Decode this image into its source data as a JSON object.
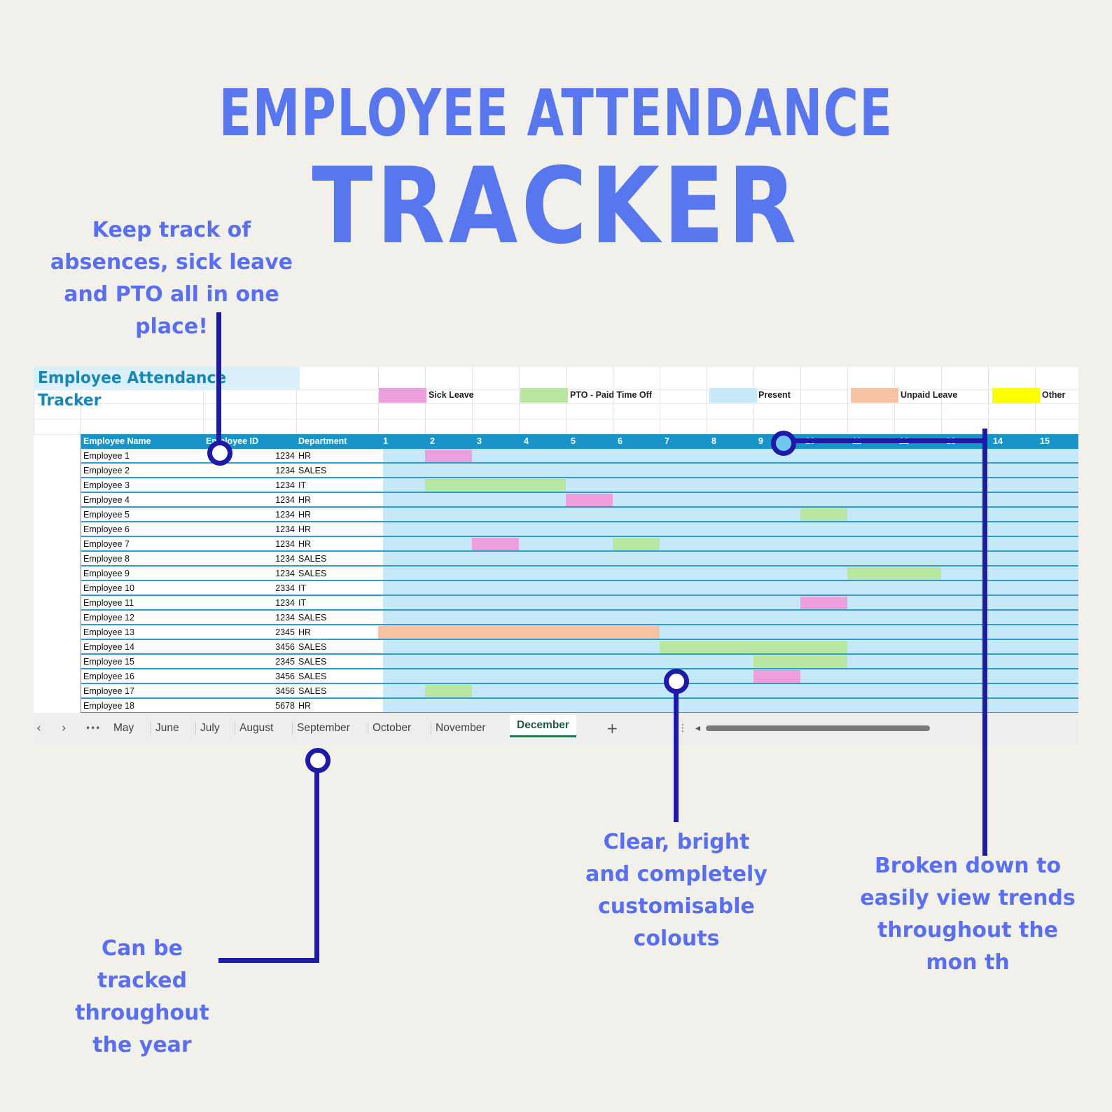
{
  "hero": {
    "title_line1": "EMPLOYEE ATTENDANCE",
    "title_line2": "TRACKER"
  },
  "callouts": {
    "top_left": [
      "Keep track of",
      "absences, sick leave",
      "and PTO all in one",
      "place!"
    ],
    "bottom_left": [
      "Can be",
      "tracked",
      "throughout",
      "the year"
    ],
    "bottom_middle": [
      "Clear, bright",
      "and completely",
      "customisable",
      "colouts"
    ],
    "bottom_right": [
      "Broken down to",
      "easily view trends",
      "throughout the",
      "mon th"
    ]
  },
  "colors": {
    "sick_leave": "#ec9fdc",
    "pto": "#b9e6a0",
    "present": "#c5e9f8",
    "unpaid_leave": "#f7c3a2",
    "other": "#ffff00",
    "header": "#1994c9",
    "accent_text": "#5a6ff0",
    "pointer": "#1e1aa7"
  },
  "sheet": {
    "title": "Employee Attendance Tracker",
    "legend": [
      {
        "key": "sick",
        "label": "Sick Leave",
        "color": "#ec9fdc"
      },
      {
        "key": "pto",
        "label": "PTO - Paid Time Off",
        "color": "#b9e6a0"
      },
      {
        "key": "present",
        "label": "Present",
        "color": "#c5e9f8"
      },
      {
        "key": "unpaid",
        "label": "Unpaid Leave",
        "color": "#f7c3a2"
      },
      {
        "key": "other",
        "label": "Other",
        "color": "#ffff00"
      }
    ],
    "columns": {
      "name": "Employee Name",
      "id": "Employee ID",
      "department": "Department"
    },
    "days": [
      "1",
      "2",
      "3",
      "4",
      "5",
      "6",
      "7",
      "8",
      "9",
      "10",
      "11",
      "12",
      "13",
      "14",
      "15"
    ],
    "employees": [
      {
        "name": "Employee 1",
        "id": "1234",
        "dept": "HR",
        "leave": [
          {
            "type": "sick",
            "start": 2,
            "end": 2
          }
        ]
      },
      {
        "name": "Employee 2",
        "id": "1234",
        "dept": "SALES",
        "leave": []
      },
      {
        "name": "Employee 3",
        "id": "1234",
        "dept": "IT",
        "leave": [
          {
            "type": "pto",
            "start": 2,
            "end": 4
          }
        ]
      },
      {
        "name": "Employee 4",
        "id": "1234",
        "dept": "HR",
        "leave": [
          {
            "type": "sick",
            "start": 5,
            "end": 5
          }
        ]
      },
      {
        "name": "Employee 5",
        "id": "1234",
        "dept": "HR",
        "leave": [
          {
            "type": "pto",
            "start": 10,
            "end": 10
          }
        ]
      },
      {
        "name": "Employee 6",
        "id": "1234",
        "dept": "HR",
        "leave": []
      },
      {
        "name": "Employee 7",
        "id": "1234",
        "dept": "HR",
        "leave": [
          {
            "type": "sick",
            "start": 3,
            "end": 3
          },
          {
            "type": "pto",
            "start": 6,
            "end": 6
          }
        ]
      },
      {
        "name": "Employee 8",
        "id": "1234",
        "dept": "SALES",
        "leave": []
      },
      {
        "name": "Employee 9",
        "id": "1234",
        "dept": "SALES",
        "leave": [
          {
            "type": "pto",
            "start": 11,
            "end": 12
          }
        ]
      },
      {
        "name": "Employee 10",
        "id": "2334",
        "dept": "IT",
        "leave": []
      },
      {
        "name": "Employee 11",
        "id": "1234",
        "dept": "IT",
        "leave": [
          {
            "type": "sick",
            "start": 10,
            "end": 10
          }
        ]
      },
      {
        "name": "Employee 12",
        "id": "1234",
        "dept": "SALES",
        "leave": []
      },
      {
        "name": "Employee 13",
        "id": "2345",
        "dept": "HR",
        "leave": [
          {
            "type": "unpaid",
            "start": 1,
            "end": 6
          }
        ]
      },
      {
        "name": "Employee 14",
        "id": "3456",
        "dept": "SALES",
        "leave": [
          {
            "type": "pto",
            "start": 7,
            "end": 10
          }
        ]
      },
      {
        "name": "Employee 15",
        "id": "2345",
        "dept": "SALES",
        "leave": [
          {
            "type": "pto",
            "start": 9,
            "end": 10
          }
        ]
      },
      {
        "name": "Employee 16",
        "id": "3456",
        "dept": "SALES",
        "leave": [
          {
            "type": "sick",
            "start": 9,
            "end": 9
          }
        ]
      },
      {
        "name": "Employee 17",
        "id": "3456",
        "dept": "SALES",
        "leave": [
          {
            "type": "pto",
            "start": 2,
            "end": 2
          }
        ]
      },
      {
        "name": "Employee 18",
        "id": "5678",
        "dept": "HR",
        "leave": []
      }
    ],
    "tabs": [
      "May",
      "June",
      "July",
      "August",
      "September",
      "October",
      "November",
      "December"
    ],
    "active_tab": "December",
    "nav_prev": "‹",
    "nav_next": "›",
    "more_tabs": "•••",
    "add_sheet": "+",
    "options": "⋮",
    "scroll_left": "◂"
  }
}
